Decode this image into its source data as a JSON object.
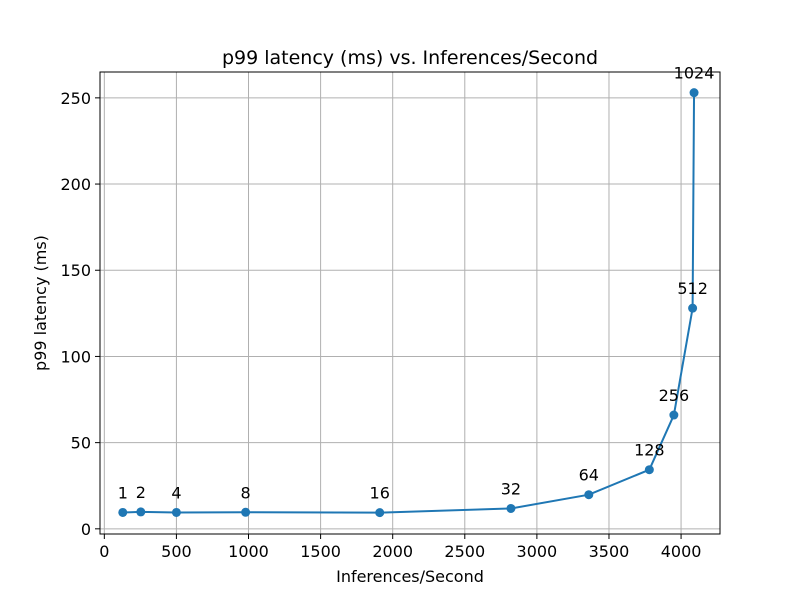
{
  "chart_data": {
    "type": "line",
    "title": "p99 latency (ms) vs. Inferences/Second",
    "xlabel": "Inferences/Second",
    "ylabel": "p99 latency (ms)",
    "xlim": [
      -30,
      4270
    ],
    "ylim": [
      -3,
      265
    ],
    "xticks": [
      0,
      500,
      1000,
      1500,
      2000,
      2500,
      3000,
      3500,
      4000
    ],
    "yticks": [
      0,
      50,
      100,
      150,
      200,
      250
    ],
    "grid": true,
    "line_color": "#1f77b4",
    "series": [
      {
        "x": [
          128,
          253,
          500,
          980,
          1910,
          2820,
          3360,
          3780,
          3950,
          4080,
          4090
        ],
        "y": [
          9.5,
          9.8,
          9.5,
          9.6,
          9.4,
          11.8,
          19.8,
          34.3,
          66.0,
          128.0,
          253.0
        ],
        "labels": [
          "1",
          "2",
          "4",
          "8",
          "16",
          "32",
          "64",
          "128",
          "256",
          "512",
          "1024"
        ]
      }
    ]
  }
}
